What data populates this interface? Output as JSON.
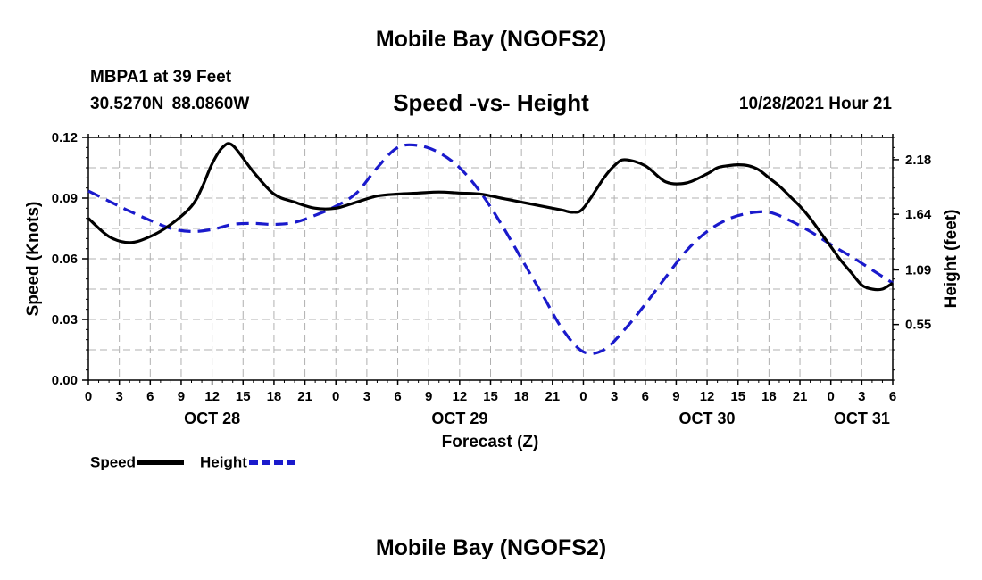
{
  "page": {
    "title": "Mobile Bay (NGOFS2)",
    "station": "MBPA1 at 39 Feet",
    "coords": "30.5270N  88.0860W",
    "subtitle": "Speed -vs- Height",
    "datetime": "10/28/2021 Hour 21",
    "footer_title": "Mobile Bay (NGOFS2)"
  },
  "chart_data": {
    "type": "line",
    "xlabel": "Forecast (Z)",
    "ylabel_left": "Speed (Knots)",
    "ylabel_right": "Height (feet)",
    "x_range": [
      0,
      78
    ],
    "ylim_left": [
      0,
      0.12
    ],
    "ylim_right": [
      0,
      2.4
    ],
    "left_ticks": [
      "0.00",
      "0.03",
      "0.06",
      "0.09",
      "0.12"
    ],
    "right_ticks": [
      "0.55",
      "1.09",
      "1.64",
      "2.18"
    ],
    "x_tick_labels": [
      "0",
      "3",
      "6",
      "9",
      "12",
      "15",
      "18",
      "21",
      "0",
      "3",
      "6",
      "9",
      "12",
      "15",
      "18",
      "21",
      "0",
      "3",
      "6",
      "9",
      "12",
      "15",
      "18",
      "21",
      "0",
      "3",
      "6"
    ],
    "date_labels": [
      {
        "label": "OCT 28",
        "hour": 12
      },
      {
        "label": "OCT 29",
        "hour": 36
      },
      {
        "label": "OCT 30",
        "hour": 60
      },
      {
        "label": "OCT 31",
        "hour": 75
      }
    ],
    "grid": true,
    "series": [
      {
        "name": "Speed",
        "axis": "left",
        "color": "#000000",
        "style": "solid",
        "x": [
          0,
          2,
          4,
          6,
          8,
          10,
          11,
          12,
          13,
          14,
          16,
          18,
          20,
          22,
          24,
          26,
          28,
          30,
          32,
          34,
          36,
          38,
          40,
          42,
          43,
          44,
          45,
          46,
          47,
          48,
          50,
          51,
          52,
          54,
          56,
          58,
          60,
          61,
          62,
          63,
          64,
          65,
          66,
          67,
          68,
          69,
          70,
          71,
          72,
          73,
          74,
          75,
          76,
          77,
          78
        ],
        "values": [
          0.08,
          0.071,
          0.068,
          0.071,
          0.077,
          0.086,
          0.095,
          0.107,
          0.115,
          0.116,
          0.103,
          0.092,
          0.088,
          0.085,
          0.085,
          0.088,
          0.091,
          0.092,
          0.0925,
          0.093,
          0.0925,
          0.092,
          0.09,
          0.088,
          0.087,
          0.086,
          0.085,
          0.084,
          0.083,
          0.085,
          0.1,
          0.106,
          0.109,
          0.106,
          0.098,
          0.0975,
          0.102,
          0.105,
          0.106,
          0.1065,
          0.106,
          0.104,
          0.1,
          0.096,
          0.091,
          0.086,
          0.08,
          0.073,
          0.066,
          0.059,
          0.053,
          0.047,
          0.045,
          0.045,
          0.048
        ]
      },
      {
        "name": "Height",
        "axis": "right",
        "color": "#1a1acc",
        "style": "dashed",
        "x": [
          0,
          2,
          4,
          6,
          8,
          10,
          12,
          14,
          16,
          18,
          20,
          22,
          24,
          26,
          28,
          30,
          32,
          34,
          36,
          38,
          40,
          42,
          44,
          46,
          48,
          50,
          52,
          54,
          56,
          58,
          60,
          62,
          64,
          66,
          68,
          70,
          72,
          74,
          76,
          78
        ],
        "values": [
          1.87,
          1.77,
          1.67,
          1.58,
          1.5,
          1.47,
          1.49,
          1.54,
          1.55,
          1.54,
          1.56,
          1.63,
          1.72,
          1.85,
          2.1,
          2.3,
          2.32,
          2.25,
          2.1,
          1.86,
          1.55,
          1.2,
          0.85,
          0.5,
          0.28,
          0.3,
          0.5,
          0.75,
          1.02,
          1.28,
          1.47,
          1.59,
          1.65,
          1.66,
          1.58,
          1.47,
          1.34,
          1.22,
          1.09,
          0.96
        ]
      }
    ]
  }
}
